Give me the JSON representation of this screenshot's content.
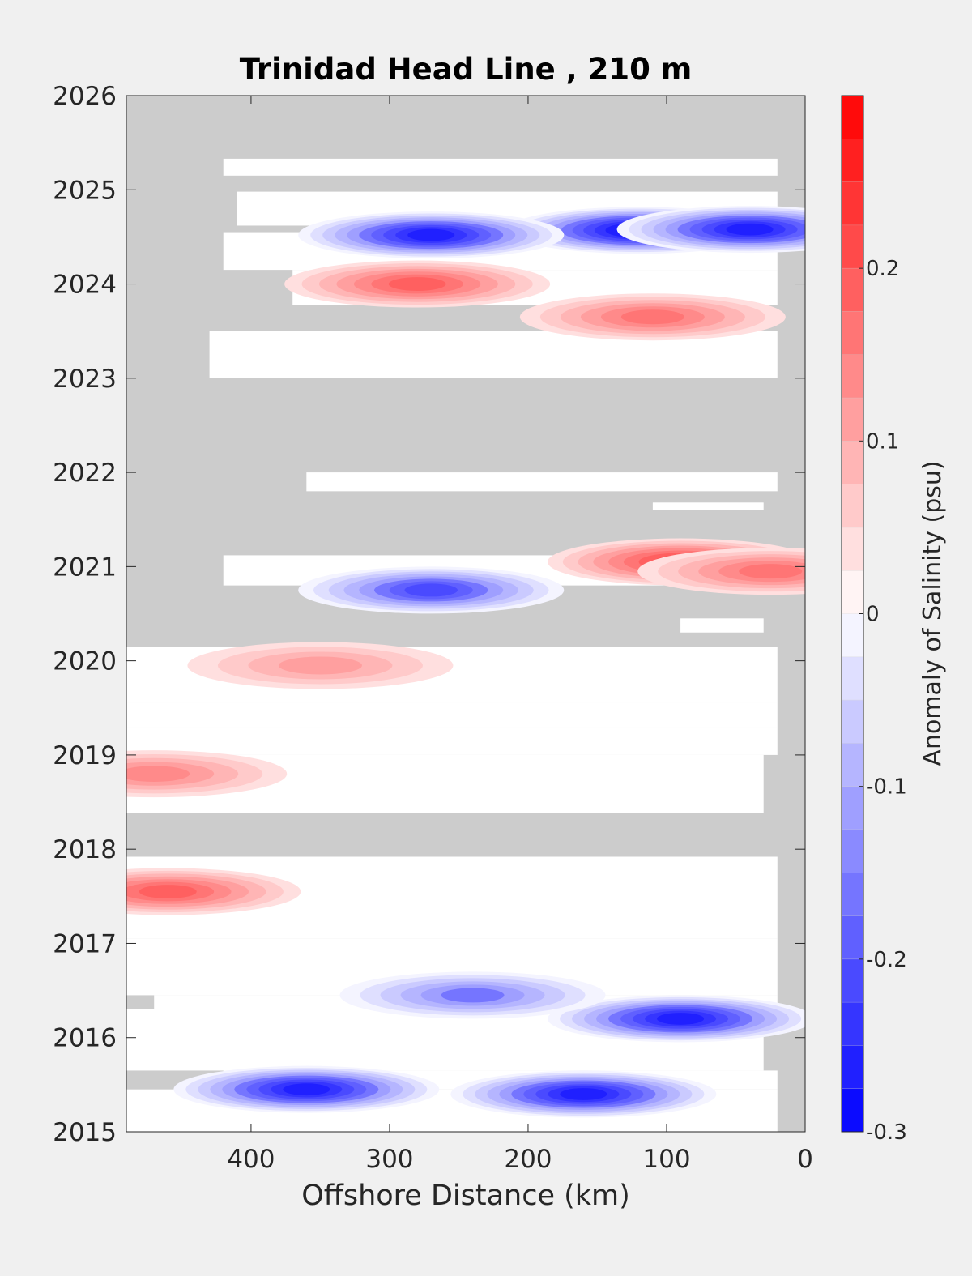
{
  "chart_data": {
    "type": "heatmap",
    "title": "Trinidad Head Line , 210 m",
    "xlabel": "Offshore Distance (km)",
    "ylabel": "",
    "x_reversed": true,
    "xlim": [
      490,
      0
    ],
    "ylim": [
      2015,
      2026
    ],
    "x_ticks": [
      400,
      300,
      200,
      100,
      0
    ],
    "x_tick_labels": [
      "400",
      "300",
      "200",
      "100",
      "0"
    ],
    "y_ticks": [
      2015,
      2016,
      2017,
      2018,
      2019,
      2020,
      2021,
      2022,
      2023,
      2024,
      2025,
      2026
    ],
    "y_tick_labels": [
      "2015",
      "2016",
      "2017",
      "2018",
      "2019",
      "2020",
      "2021",
      "2022",
      "2023",
      "2024",
      "2025",
      "2026"
    ],
    "no_data_color": "#cccccc",
    "colorbar": {
      "label": "Anomaly of Salinity (psu)",
      "clim": [
        -0.3,
        0.3
      ],
      "levels": 24,
      "colors": {
        "low": "#0000ff",
        "mid": "#ffffff",
        "high": "#ff0000"
      },
      "ticks": [
        -0.3,
        -0.2,
        -0.1,
        0,
        0.1,
        0.2
      ],
      "tick_labels": [
        "-0.3",
        "-0.2",
        "-0.1",
        "0",
        "0.1",
        "0.2"
      ]
    },
    "data_coverage": [
      {
        "t": [
          2015.0,
          2015.45
        ],
        "x": [
          490,
          20
        ]
      },
      {
        "t": [
          2015.45,
          2015.65
        ],
        "x": [
          420,
          20
        ]
      },
      {
        "t": [
          2015.65,
          2016.3
        ],
        "x": [
          490,
          30
        ]
      },
      {
        "t": [
          2016.3,
          2016.45
        ],
        "x": [
          470,
          20
        ]
      },
      {
        "t": [
          2016.45,
          2017.05
        ],
        "x": [
          490,
          20
        ]
      },
      {
        "t": [
          2017.05,
          2017.75
        ],
        "x": [
          490,
          20
        ]
      },
      {
        "t": [
          2017.75,
          2017.92
        ],
        "x": [
          490,
          20
        ]
      },
      {
        "t": [
          2018.38,
          2019.0
        ],
        "x": [
          490,
          30
        ]
      },
      {
        "t": [
          2019.0,
          2019.3
        ],
        "x": [
          490,
          20
        ]
      },
      {
        "t": [
          2019.3,
          2019.55
        ],
        "x": [
          490,
          20
        ]
      },
      {
        "t": [
          2019.55,
          2020.15
        ],
        "x": [
          490,
          20
        ]
      },
      {
        "t": [
          2020.3,
          2020.45
        ],
        "x": [
          90,
          30
        ]
      },
      {
        "t": [
          2020.8,
          2021.12
        ],
        "x": [
          420,
          20
        ]
      },
      {
        "t": [
          2021.6,
          2021.68
        ],
        "x": [
          110,
          30
        ]
      },
      {
        "t": [
          2021.8,
          2022.0
        ],
        "x": [
          360,
          20
        ]
      },
      {
        "t": [
          2023.0,
          2023.5
        ],
        "x": [
          430,
          20
        ]
      },
      {
        "t": [
          2023.78,
          2024.15
        ],
        "x": [
          370,
          20
        ]
      },
      {
        "t": [
          2024.15,
          2024.55
        ],
        "x": [
          420,
          20
        ]
      },
      {
        "t": [
          2024.55,
          2024.62
        ],
        "x": [
          300,
          20
        ]
      },
      {
        "t": [
          2024.62,
          2024.98
        ],
        "x": [
          410,
          20
        ]
      },
      {
        "t": [
          2025.15,
          2025.33
        ],
        "x": [
          420,
          20
        ]
      }
    ],
    "anomaly_features": [
      {
        "t": 2024.57,
        "x": 120,
        "value": -0.28
      },
      {
        "t": 2024.52,
        "x": 270,
        "value": -0.25
      },
      {
        "t": 2024.58,
        "x": 40,
        "value": -0.26
      },
      {
        "t": 2024.0,
        "x": 280,
        "value": 0.18
      },
      {
        "t": 2023.65,
        "x": 110,
        "value": 0.16
      },
      {
        "t": 2021.05,
        "x": 90,
        "value": 0.2
      },
      {
        "t": 2020.95,
        "x": 25,
        "value": 0.16
      },
      {
        "t": 2020.75,
        "x": 270,
        "value": -0.2
      },
      {
        "t": 2019.95,
        "x": 350,
        "value": 0.09
      },
      {
        "t": 2018.8,
        "x": 470,
        "value": 0.12
      },
      {
        "t": 2017.55,
        "x": 460,
        "value": 0.18
      },
      {
        "t": 2016.2,
        "x": 90,
        "value": -0.24
      },
      {
        "t": 2015.45,
        "x": 360,
        "value": -0.24
      },
      {
        "t": 2015.4,
        "x": 160,
        "value": -0.24
      },
      {
        "t": 2016.45,
        "x": 240,
        "value": -0.14
      }
    ]
  }
}
